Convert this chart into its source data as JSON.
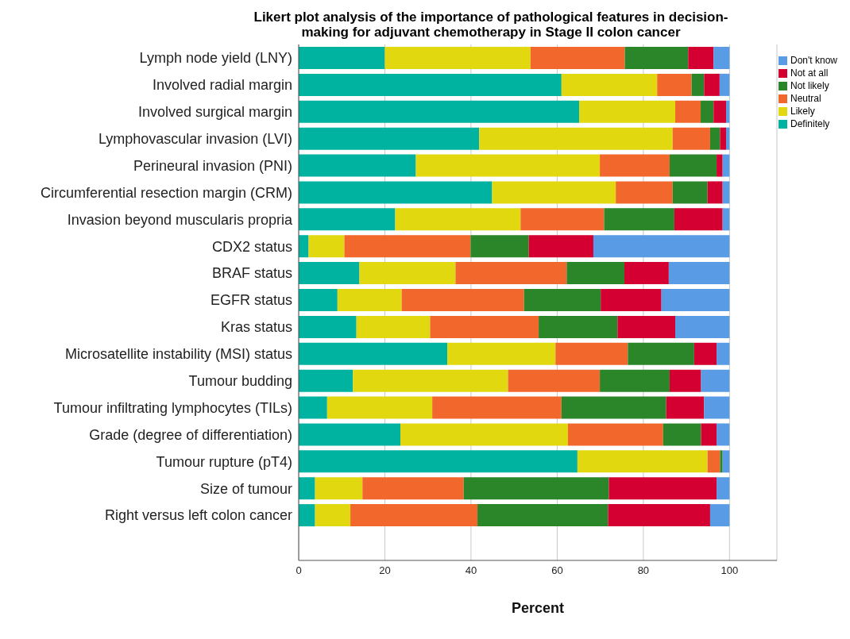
{
  "chart_data": {
    "type": "bar",
    "orientation": "horizontal",
    "stacked": true,
    "title": "Likert plot analysis of the importance of pathological features in decision-making for adjuvant chemotherapy in Stage II colon cancer",
    "xlabel": "Percent",
    "categories": [
      "Lymph node yield (LNY)",
      "Involved radial margin",
      "Involved surgical margin",
      "Lymphovascular invasion (LVI)",
      "Perineural invasion (PNI)",
      "Circumferential resection margin (CRM)",
      "Invasion beyond muscularis propria",
      "CDX2 status",
      "BRAF status",
      "EGFR status",
      "Kras status",
      "Microsatellite instability (MSI) status",
      "Tumour budding",
      "Tumour infiltrating lymphocytes (TILs)",
      "Grade (degree of differentiation)",
      "Tumour rupture (pT4)",
      "Size of tumour",
      "Right versus left colon cancer"
    ],
    "series": [
      {
        "name": "Definitely",
        "color": "#00b2a0",
        "values": [
          20.0,
          61.0,
          65.1,
          41.9,
          27.2,
          44.9,
          22.4,
          2.3,
          14.1,
          9.0,
          13.4,
          34.5,
          12.6,
          6.6,
          23.6,
          64.7,
          3.8,
          3.8
        ]
      },
      {
        "name": "Likely",
        "color": "#e2d810",
        "values": [
          33.8,
          22.2,
          22.3,
          44.9,
          42.7,
          28.7,
          29.1,
          8.3,
          22.3,
          14.9,
          17.1,
          25.1,
          36.0,
          24.4,
          38.9,
          30.2,
          11.0,
          8.2
        ]
      },
      {
        "name": "Neutral",
        "color": "#f2672c",
        "values": [
          21.9,
          8.0,
          5.9,
          8.7,
          16.2,
          13.2,
          19.4,
          29.3,
          25.8,
          28.4,
          25.2,
          16.8,
          21.3,
          30.0,
          22.1,
          2.9,
          23.5,
          29.5
        ]
      },
      {
        "name": "Not likely",
        "color": "#2a8629",
        "values": [
          14.7,
          2.9,
          3.0,
          2.3,
          10.9,
          8.1,
          16.3,
          13.5,
          13.4,
          17.8,
          18.3,
          15.4,
          16.2,
          24.3,
          8.8,
          0.6,
          33.7,
          30.3
        ]
      },
      {
        "name": "Not at all",
        "color": "#d50032",
        "values": [
          5.9,
          3.6,
          2.9,
          1.4,
          1.4,
          3.5,
          11.2,
          15.0,
          10.3,
          14.1,
          13.4,
          5.2,
          7.3,
          8.8,
          3.6,
          0.0,
          25.0,
          23.7
        ]
      },
      {
        "name": "Don't know",
        "color": "#5a9be6",
        "values": [
          3.7,
          2.3,
          0.8,
          0.8,
          1.6,
          1.6,
          1.6,
          31.6,
          14.1,
          15.8,
          12.6,
          3.0,
          6.6,
          5.9,
          3.0,
          1.6,
          3.0,
          4.5
        ]
      }
    ],
    "xlim": [
      0,
      111
    ],
    "xticks": [
      0,
      20,
      40,
      60,
      80,
      100
    ],
    "grid": "x",
    "legend": "top right"
  }
}
